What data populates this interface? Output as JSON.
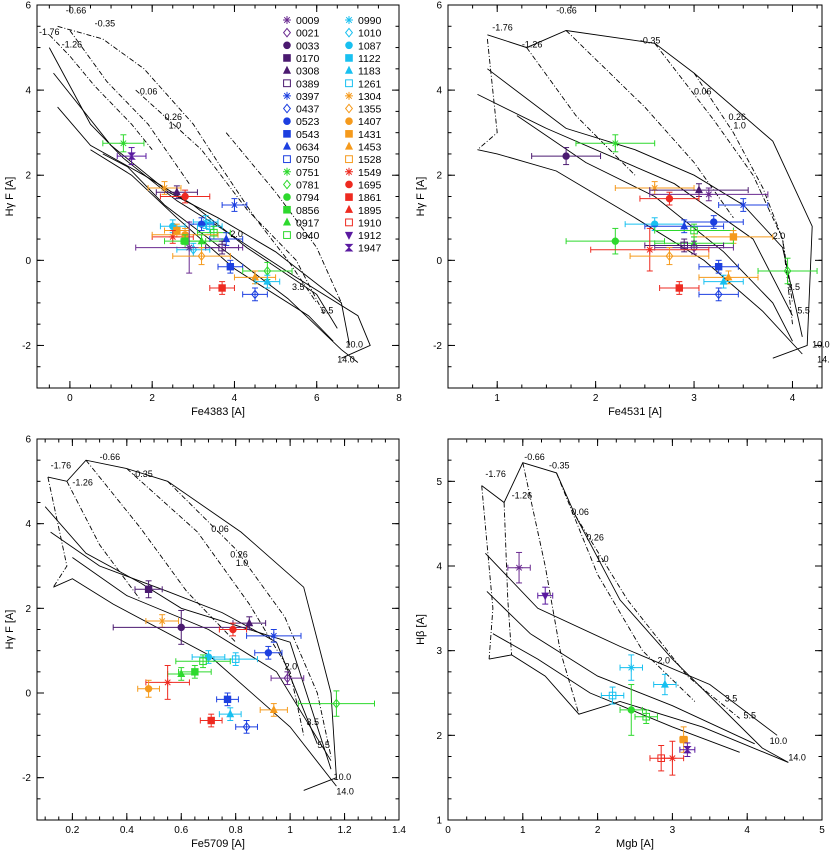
{
  "legend": {
    "col1": [
      {
        "label": "0009",
        "color": "#6a2a90",
        "marker": "star"
      },
      {
        "label": "0021",
        "color": "#6a2a90",
        "marker": "diamond-open"
      },
      {
        "label": "0033",
        "color": "#4b1a70",
        "marker": "circle"
      },
      {
        "label": "0170",
        "color": "#4b1a70",
        "marker": "square"
      },
      {
        "label": "0308",
        "color": "#4b1a70",
        "marker": "triangle"
      },
      {
        "label": "0389",
        "color": "#4b1a70",
        "marker": "square-open"
      },
      {
        "label": "0397",
        "color": "#1c3fe0",
        "marker": "star"
      },
      {
        "label": "0437",
        "color": "#1c3fe0",
        "marker": "diamond-open"
      },
      {
        "label": "0523",
        "color": "#1c3fe0",
        "marker": "circle"
      },
      {
        "label": "0543",
        "color": "#1c3fe0",
        "marker": "square"
      },
      {
        "label": "0634",
        "color": "#1c3fe0",
        "marker": "triangle"
      },
      {
        "label": "0750",
        "color": "#1c3fe0",
        "marker": "square-open"
      },
      {
        "label": "0751",
        "color": "#2ed92e",
        "marker": "star"
      },
      {
        "label": "0781",
        "color": "#2ed92e",
        "marker": "diamond-open"
      },
      {
        "label": "0794",
        "color": "#2ed92e",
        "marker": "circle"
      },
      {
        "label": "0856",
        "color": "#2ed92e",
        "marker": "square"
      },
      {
        "label": "0917",
        "color": "#2ed92e",
        "marker": "triangle"
      },
      {
        "label": "0940",
        "color": "#2ed92e",
        "marker": "square-open"
      }
    ],
    "col2": [
      {
        "label": "0990",
        "color": "#18c0f0",
        "marker": "star"
      },
      {
        "label": "1010",
        "color": "#18c0f0",
        "marker": "diamond-open"
      },
      {
        "label": "1087",
        "color": "#18c0f0",
        "marker": "circle"
      },
      {
        "label": "1122",
        "color": "#18c0f0",
        "marker": "square"
      },
      {
        "label": "1183",
        "color": "#18c0f0",
        "marker": "triangle"
      },
      {
        "label": "1261",
        "color": "#18c0f0",
        "marker": "square-open"
      },
      {
        "label": "1304",
        "color": "#f59a1c",
        "marker": "star"
      },
      {
        "label": "1355",
        "color": "#f59a1c",
        "marker": "diamond-open"
      },
      {
        "label": "1407",
        "color": "#f59a1c",
        "marker": "circle"
      },
      {
        "label": "1431",
        "color": "#f59a1c",
        "marker": "square"
      },
      {
        "label": "1453",
        "color": "#f59a1c",
        "marker": "triangle"
      },
      {
        "label": "1528",
        "color": "#f59a1c",
        "marker": "square-open"
      },
      {
        "label": "1549",
        "color": "#ee2a20",
        "marker": "star"
      },
      {
        "label": "1695",
        "color": "#ee2a20",
        "marker": "circle"
      },
      {
        "label": "1861",
        "color": "#ee2a20",
        "marker": "square"
      },
      {
        "label": "1895",
        "color": "#ee2a20",
        "marker": "triangle"
      },
      {
        "label": "1910",
        "color": "#ee2a20",
        "marker": "square-open"
      },
      {
        "label": "1912",
        "color": "#5a1aa0",
        "marker": "triangle-down"
      },
      {
        "label": "1947",
        "color": "#5a1aa0",
        "marker": "bowtie"
      }
    ]
  },
  "chart_data": [
    {
      "type": "scatter",
      "panel": "top-left",
      "xlabel": "Fe4383 [A]",
      "ylabel": "Hγ F [A]",
      "xlim": [
        -0.8,
        8
      ],
      "ylim": [
        -3,
        6
      ],
      "xticks": [
        0,
        2,
        4,
        6,
        8
      ],
      "yticks": [
        -2,
        0,
        2,
        4,
        6
      ],
      "grid_age_labels": [
        "-1.76",
        "-1.26",
        "-0.66",
        "-0.35",
        "0.06",
        "0.26",
        "1.0"
      ],
      "grid_met_labels": [
        "2.0",
        "3.5",
        "5.5",
        "10.0",
        "14.0"
      ],
      "points": [
        {
          "label": "1947",
          "x": 1.5,
          "y": 2.45,
          "xerr": 0.35,
          "yerr": 0.2
        },
        {
          "label": "0751",
          "x": 1.3,
          "y": 2.75,
          "xerr": 0.5,
          "yerr": 0.2
        },
        {
          "label": "1304",
          "x": 2.3,
          "y": 1.7,
          "xerr": 0.4,
          "yerr": 0.15
        },
        {
          "label": "0308",
          "x": 2.6,
          "y": 1.6,
          "xerr": 0.5,
          "yerr": 0.15
        },
        {
          "label": "1695",
          "x": 2.8,
          "y": 1.5,
          "xerr": 0.6,
          "yerr": 0.15
        },
        {
          "label": "0397",
          "x": 4.0,
          "y": 1.3,
          "xerr": 0.3,
          "yerr": 0.15
        },
        {
          "label": "0990",
          "x": 3.3,
          "y": 0.9,
          "xerr": 0.3,
          "yerr": 0.15
        },
        {
          "label": "0523",
          "x": 3.2,
          "y": 0.85,
          "xerr": 0.3,
          "yerr": 0.15
        },
        {
          "label": "1261",
          "x": 3.4,
          "y": 0.8,
          "xerr": 0.3,
          "yerr": 0.15
        },
        {
          "label": "1087",
          "x": 2.5,
          "y": 0.8,
          "xerr": 0.3,
          "yerr": 0.15
        },
        {
          "label": "1431",
          "x": 2.6,
          "y": 0.7,
          "xerr": 0.3,
          "yerr": 0.15
        },
        {
          "label": "0940",
          "x": 3.5,
          "y": 0.65,
          "xerr": 0.4,
          "yerr": 0.15
        },
        {
          "label": "1549",
          "x": 2.5,
          "y": 0.55,
          "xerr": 0.5,
          "yerr": 0.15
        },
        {
          "label": "1407",
          "x": 2.8,
          "y": 0.6,
          "xerr": 0.8,
          "yerr": 0.15
        },
        {
          "label": "0634",
          "x": 3.8,
          "y": 0.5,
          "xerr": 0.4,
          "yerr": 0.15
        },
        {
          "label": "0917",
          "x": 3.2,
          "y": 0.45,
          "xerr": 0.5,
          "yerr": 0.15
        },
        {
          "label": "0856",
          "x": 2.8,
          "y": 0.45,
          "xerr": 0.5,
          "yerr": 0.15
        },
        {
          "label": "0389",
          "x": 3.7,
          "y": 0.3,
          "xerr": 0.4,
          "yerr": 0.15
        },
        {
          "label": "1010",
          "x": 3.0,
          "y": 0.25,
          "xerr": 0.4,
          "yerr": 0.15
        },
        {
          "label": "0009",
          "x": 2.9,
          "y": 0.3,
          "xerr": 1.3,
          "yerr": 0.6
        },
        {
          "label": "1355",
          "x": 3.2,
          "y": 0.1,
          "xerr": 0.7,
          "yerr": 0.2
        },
        {
          "label": "0543",
          "x": 3.9,
          "y": -0.15,
          "xerr": 0.3,
          "yerr": 0.15
        },
        {
          "label": "0781",
          "x": 4.8,
          "y": -0.25,
          "xerr": 0.6,
          "yerr": 0.2
        },
        {
          "label": "1453",
          "x": 4.5,
          "y": -0.4,
          "xerr": 0.5,
          "yerr": 0.15
        },
        {
          "label": "1183",
          "x": 4.8,
          "y": -0.5,
          "xerr": 0.3,
          "yerr": 0.15
        },
        {
          "label": "1861",
          "x": 3.7,
          "y": -0.65,
          "xerr": 0.3,
          "yerr": 0.15
        },
        {
          "label": "0437",
          "x": 4.5,
          "y": -0.8,
          "xerr": 0.3,
          "yerr": 0.15
        }
      ]
    },
    {
      "type": "scatter",
      "panel": "top-right",
      "xlabel": "Fe4531 [A]",
      "ylabel": "Hγ F [A]",
      "xlim": [
        0.5,
        4.3
      ],
      "ylim": [
        -3,
        6
      ],
      "xticks": [
        1,
        2,
        3,
        4
      ],
      "yticks": [
        -2,
        0,
        2,
        4,
        6
      ],
      "grid_age_labels": [
        "-1.76",
        "-1.26",
        "-0.66",
        "-0.35",
        "0.06",
        "0.26",
        "1.0"
      ],
      "grid_met_labels": [
        "2.0",
        "3.5",
        "5.5",
        "10.0",
        "14.0"
      ],
      "points": [
        {
          "label": "0033",
          "x": 1.7,
          "y": 2.45,
          "xerr": 0.35,
          "yerr": 0.2
        },
        {
          "label": "0751",
          "x": 2.2,
          "y": 2.75,
          "xerr": 0.4,
          "yerr": 0.2
        },
        {
          "label": "1304",
          "x": 2.6,
          "y": 1.7,
          "xerr": 0.4,
          "yerr": 0.15
        },
        {
          "label": "0308",
          "x": 3.05,
          "y": 1.65,
          "xerr": 0.5,
          "yerr": 0.15
        },
        {
          "label": "0009",
          "x": 3.15,
          "y": 1.55,
          "xerr": 0.6,
          "yerr": 0.15
        },
        {
          "label": "1695",
          "x": 2.75,
          "y": 1.45,
          "xerr": 0.3,
          "yerr": 0.15
        },
        {
          "label": "0397",
          "x": 3.5,
          "y": 1.3,
          "xerr": 0.25,
          "yerr": 0.15
        },
        {
          "label": "0523",
          "x": 3.2,
          "y": 0.9,
          "xerr": 0.3,
          "yerr": 0.15
        },
        {
          "label": "1087",
          "x": 2.6,
          "y": 0.85,
          "xerr": 0.3,
          "yerr": 0.15
        },
        {
          "label": "0634",
          "x": 2.9,
          "y": 0.8,
          "xerr": 0.4,
          "yerr": 0.15
        },
        {
          "label": "0940",
          "x": 3.0,
          "y": 0.7,
          "xerr": 0.4,
          "yerr": 0.15
        },
        {
          "label": "1431",
          "x": 3.4,
          "y": 0.55,
          "xerr": 0.4,
          "yerr": 0.15
        },
        {
          "label": "0794",
          "x": 2.2,
          "y": 0.45,
          "xerr": 0.5,
          "yerr": 0.3
        },
        {
          "label": "0917",
          "x": 3.0,
          "y": 0.4,
          "xerr": 0.4,
          "yerr": 0.15
        },
        {
          "label": "0389",
          "x": 2.9,
          "y": 0.35,
          "xerr": 0.4,
          "yerr": 0.15
        },
        {
          "label": "0021",
          "x": 3.0,
          "y": 0.3,
          "xerr": 0.4,
          "yerr": 0.15
        },
        {
          "label": "1549",
          "x": 2.55,
          "y": 0.25,
          "xerr": 0.6,
          "yerr": 0.5
        },
        {
          "label": "1355",
          "x": 2.75,
          "y": 0.1,
          "xerr": 0.4,
          "yerr": 0.2
        },
        {
          "label": "0543",
          "x": 3.25,
          "y": -0.15,
          "xerr": 0.2,
          "yerr": 0.15
        },
        {
          "label": "0781",
          "x": 3.95,
          "y": -0.25,
          "xerr": 0.3,
          "yerr": 0.3
        },
        {
          "label": "1453",
          "x": 3.35,
          "y": -0.4,
          "xerr": 0.3,
          "yerr": 0.15
        },
        {
          "label": "1183",
          "x": 3.3,
          "y": -0.5,
          "xerr": 0.2,
          "yerr": 0.15
        },
        {
          "label": "1861",
          "x": 2.85,
          "y": -0.65,
          "xerr": 0.2,
          "yerr": 0.15
        },
        {
          "label": "0437",
          "x": 3.25,
          "y": -0.8,
          "xerr": 0.2,
          "yerr": 0.15
        }
      ]
    },
    {
      "type": "scatter",
      "panel": "bottom-left",
      "xlabel": "Fe5709 [A]",
      "ylabel": "Hγ F [A]",
      "xlim": [
        0.07,
        1.4
      ],
      "ylim": [
        -3,
        6
      ],
      "xticks": [
        0.2,
        0.4,
        0.6,
        0.8,
        1.0,
        1.2,
        1.4
      ],
      "yticks": [
        -2,
        0,
        2,
        4,
        6
      ],
      "grid_age_labels": [
        "-1.76",
        "-1.26",
        "-0.66",
        "-0.35",
        "0.06",
        "0.26",
        "1.0"
      ],
      "grid_met_labels": [
        "2.0",
        "3.5",
        "5.5",
        "10.0",
        "14.0"
      ],
      "points": [
        {
          "label": "0170",
          "x": 0.48,
          "y": 2.45,
          "xerr": 0.05,
          "yerr": 0.2
        },
        {
          "label": "1304",
          "x": 0.53,
          "y": 1.7,
          "xerr": 0.06,
          "yerr": 0.15
        },
        {
          "label": "0308",
          "x": 0.85,
          "y": 1.65,
          "xerr": 0.06,
          "yerr": 0.15
        },
        {
          "label": "0033",
          "x": 0.6,
          "y": 1.55,
          "xerr": 0.25,
          "yerr": 0.4
        },
        {
          "label": "1695",
          "x": 0.79,
          "y": 1.5,
          "xerr": 0.05,
          "yerr": 0.15
        },
        {
          "label": "0397",
          "x": 0.94,
          "y": 1.35,
          "xerr": 0.1,
          "yerr": 0.15
        },
        {
          "label": "0523",
          "x": 0.92,
          "y": 0.95,
          "xerr": 0.05,
          "yerr": 0.15
        },
        {
          "label": "1087",
          "x": 0.7,
          "y": 0.85,
          "xerr": 0.06,
          "yerr": 0.15
        },
        {
          "label": "1261",
          "x": 0.8,
          "y": 0.8,
          "xerr": 0.08,
          "yerr": 0.15
        },
        {
          "label": "0940",
          "x": 0.68,
          "y": 0.75,
          "xerr": 0.1,
          "yerr": 0.15
        },
        {
          "label": "0856",
          "x": 0.65,
          "y": 0.5,
          "xerr": 0.06,
          "yerr": 0.15
        },
        {
          "label": "0917",
          "x": 0.6,
          "y": 0.45,
          "xerr": 0.05,
          "yerr": 0.15
        },
        {
          "label": "0021",
          "x": 0.99,
          "y": 0.35,
          "xerr": 0.06,
          "yerr": 0.15
        },
        {
          "label": "1549",
          "x": 0.55,
          "y": 0.25,
          "xerr": 0.08,
          "yerr": 0.4
        },
        {
          "label": "1407",
          "x": 0.48,
          "y": 0.1,
          "xerr": 0.04,
          "yerr": 0.2
        },
        {
          "label": "0543",
          "x": 0.77,
          "y": -0.15,
          "xerr": 0.04,
          "yerr": 0.15
        },
        {
          "label": "0781",
          "x": 1.17,
          "y": -0.25,
          "xerr": 0.14,
          "yerr": 0.3
        },
        {
          "label": "1453",
          "x": 0.94,
          "y": -0.4,
          "xerr": 0.05,
          "yerr": 0.15
        },
        {
          "label": "1183",
          "x": 0.78,
          "y": -0.5,
          "xerr": 0.04,
          "yerr": 0.15
        },
        {
          "label": "1861",
          "x": 0.71,
          "y": -0.65,
          "xerr": 0.04,
          "yerr": 0.15
        },
        {
          "label": "0437",
          "x": 0.84,
          "y": -0.8,
          "xerr": 0.04,
          "yerr": 0.15
        }
      ]
    },
    {
      "type": "scatter",
      "panel": "bottom-right",
      "xlabel": "Mgb [A]",
      "ylabel": "Hβ [A]",
      "xlim": [
        0,
        5
      ],
      "ylim": [
        1,
        5.5
      ],
      "xticks": [
        0,
        1,
        2,
        3,
        4,
        5
      ],
      "yticks": [
        1,
        2,
        3,
        4,
        5
      ],
      "grid_age_labels": [
        "-1.76",
        "-1.26",
        "-0.66",
        "-0.35",
        "0.06",
        "0.26",
        "1.0"
      ],
      "grid_met_labels": [
        "2.0",
        "3.5",
        "5.5",
        "10.0",
        "14.0"
      ],
      "points": [
        {
          "label": "0009",
          "x": 0.95,
          "y": 3.98,
          "xerr": 0.15,
          "yerr": 0.18
        },
        {
          "label": "1912",
          "x": 1.3,
          "y": 3.65,
          "xerr": 0.1,
          "yerr": 0.1
        },
        {
          "label": "0990",
          "x": 2.45,
          "y": 2.8,
          "xerr": 0.15,
          "yerr": 0.15
        },
        {
          "label": "1183",
          "x": 2.9,
          "y": 2.6,
          "xerr": 0.15,
          "yerr": 0.12
        },
        {
          "label": "1261",
          "x": 2.2,
          "y": 2.47,
          "xerr": 0.15,
          "yerr": 0.1
        },
        {
          "label": "0794",
          "x": 2.45,
          "y": 2.3,
          "xerr": 0.15,
          "yerr": 0.3
        },
        {
          "label": "0940",
          "x": 2.65,
          "y": 2.22,
          "xerr": 0.15,
          "yerr": 0.08
        },
        {
          "label": "1431",
          "x": 3.15,
          "y": 1.95,
          "xerr": 0.05,
          "yerr": 0.15
        },
        {
          "label": "1947",
          "x": 3.2,
          "y": 1.83,
          "xerr": 0.1,
          "yerr": 0.08
        },
        {
          "label": "1910",
          "x": 2.85,
          "y": 1.73,
          "xerr": 0.15,
          "yerr": 0.15
        },
        {
          "label": "1549",
          "x": 3.0,
          "y": 1.73,
          "xerr": 0.15,
          "yerr": 0.2
        }
      ]
    }
  ]
}
